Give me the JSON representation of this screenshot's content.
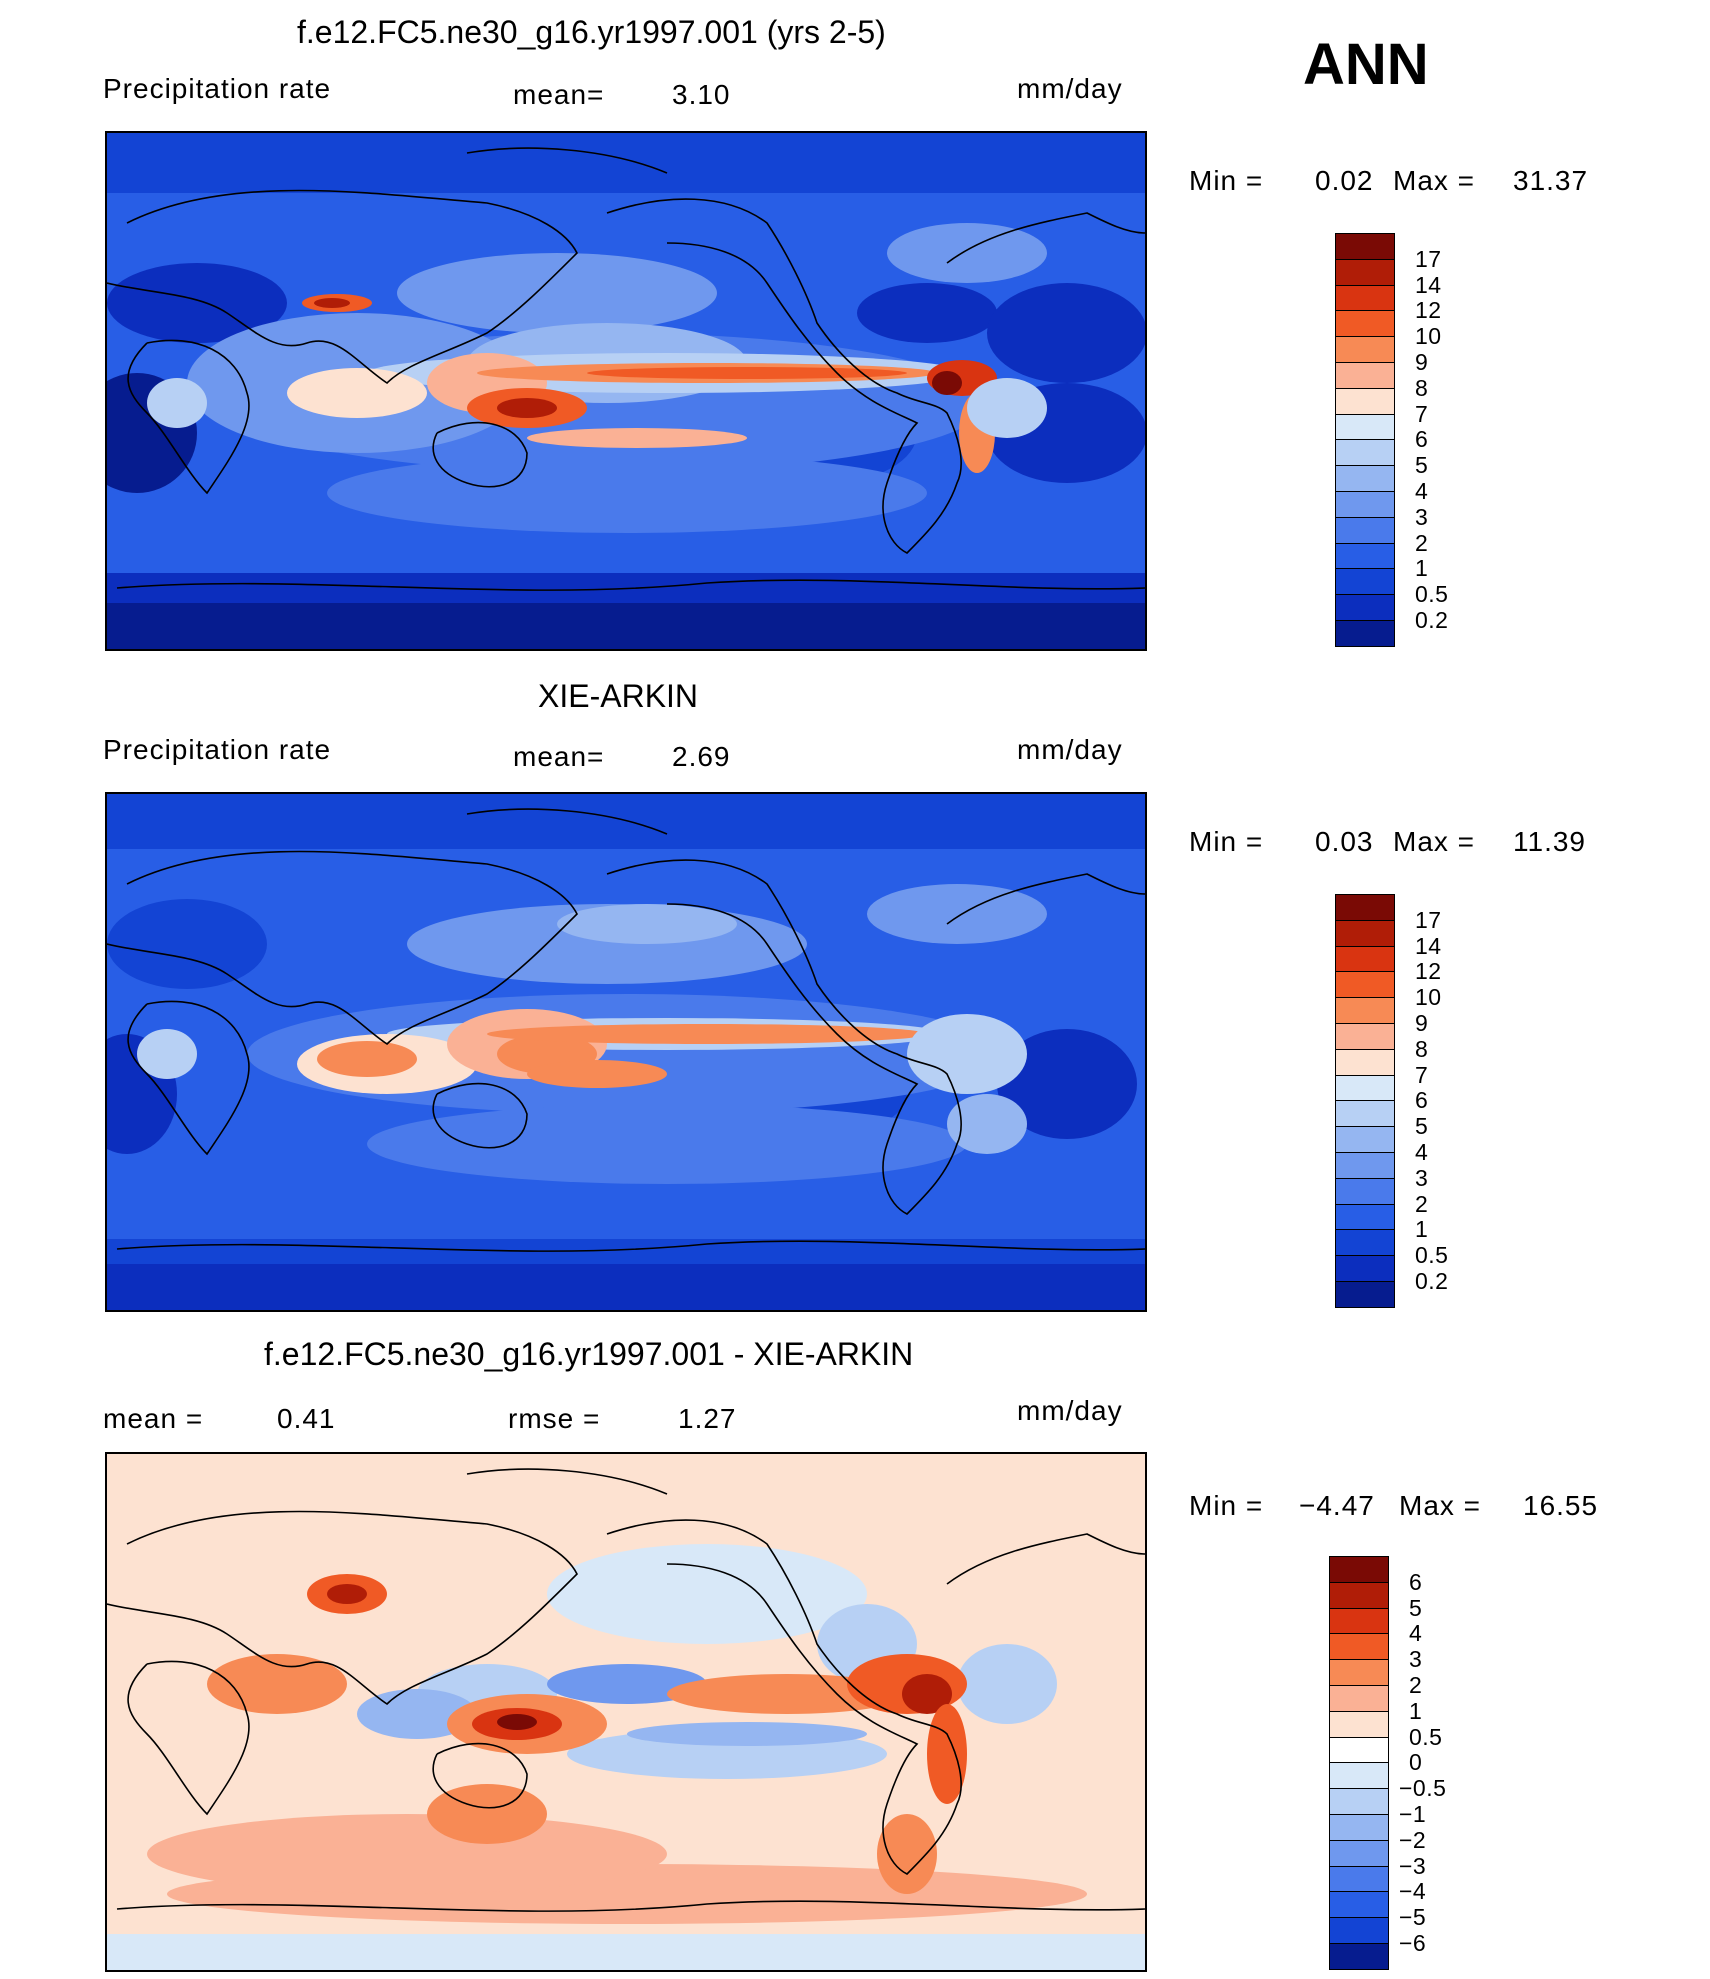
{
  "season": "ANN",
  "chart_data": [
    {
      "type": "heatmap",
      "title": "f.e12.FC5.ne30_g16.yr1997.001 (yrs 2-5)",
      "variable": "Precipitation rate",
      "stat1_label": "mean=",
      "stat1_value": "3.10",
      "units": "mm/day",
      "min_label": "Min  =",
      "min_value": "0.02",
      "max_label": "Max  =",
      "max_value": "31.37",
      "levels": [
        "17",
        "14",
        "12",
        "10",
        "9",
        "8",
        "7",
        "6",
        "5",
        "4",
        "3",
        "2",
        "1",
        "0.5",
        "0.2"
      ],
      "colors": [
        "#7a0a05",
        "#b01d07",
        "#d93411",
        "#f05a25",
        "#f78a55",
        "#fab195",
        "#fde2d1",
        "#d8e8f8",
        "#b7d0f4",
        "#95b6f1",
        "#6f98ee",
        "#4a7aeb",
        "#285ee6",
        "#1344d4",
        "#0c2ebe",
        "#061c8f"
      ]
    },
    {
      "type": "heatmap",
      "title": "XIE-ARKIN",
      "variable": "Precipitation rate",
      "stat1_label": "mean=",
      "stat1_value": "2.69",
      "units": "mm/day",
      "min_label": "Min  =",
      "min_value": "0.03",
      "max_label": "Max  =",
      "max_value": "11.39",
      "levels": [
        "17",
        "14",
        "12",
        "10",
        "9",
        "8",
        "7",
        "6",
        "5",
        "4",
        "3",
        "2",
        "1",
        "0.5",
        "0.2"
      ],
      "colors": [
        "#7a0a05",
        "#b01d07",
        "#d93411",
        "#f05a25",
        "#f78a55",
        "#fab195",
        "#fde2d1",
        "#d8e8f8",
        "#b7d0f4",
        "#95b6f1",
        "#6f98ee",
        "#4a7aeb",
        "#285ee6",
        "#1344d4",
        "#0c2ebe",
        "#061c8f"
      ]
    },
    {
      "type": "heatmap",
      "title": "f.e12.FC5.ne30_g16.yr1997.001 - XIE-ARKIN",
      "stat1_label": "mean  =",
      "stat1_value": "0.41",
      "stat2_label": "rmse  =",
      "stat2_value": "1.27",
      "units": "mm/day",
      "min_label": "Min  =",
      "min_value": "−4.47",
      "max_label": "Max  =",
      "max_value": "16.55",
      "levels": [
        "6",
        "5",
        "4",
        "3",
        "2",
        "1",
        "0.5",
        "0",
        "−0.5",
        "−1",
        "−2",
        "−3",
        "−4",
        "−5",
        "−6"
      ],
      "colors": [
        "#7a0a05",
        "#b01d07",
        "#d93411",
        "#f05a25",
        "#f78a55",
        "#fab195",
        "#fde2d1",
        "#ffffff",
        "#d8e8f8",
        "#b7d0f4",
        "#95b6f1",
        "#6f98ee",
        "#4a7aeb",
        "#285ee6",
        "#1344d4",
        "#061c8f"
      ]
    }
  ]
}
